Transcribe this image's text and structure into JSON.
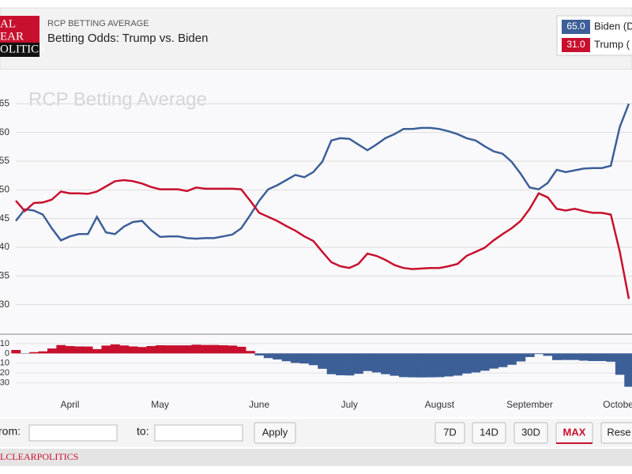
{
  "header": {
    "kicker": "RCP BETTING AVERAGE",
    "title": "Betting Odds: Trump vs. Biden",
    "logo": [
      "AL",
      "EAR",
      "OLITICS"
    ]
  },
  "chart_data": {
    "type": "line",
    "watermark": "RCP Betting Average",
    "categories": [
      null,
      null,
      null,
      null,
      null,
      null,
      "April",
      null,
      null,
      null,
      null,
      null,
      null,
      null,
      null,
      null,
      "May",
      null,
      null,
      null,
      null,
      null,
      null,
      null,
      null,
      null,
      null,
      "June",
      null,
      null,
      null,
      null,
      null,
      null,
      null,
      null,
      null,
      "July",
      null,
      null,
      null,
      null,
      null,
      null,
      null,
      null,
      null,
      "August",
      null,
      null,
      null,
      null,
      null,
      null,
      null,
      null,
      null,
      "September",
      null,
      null,
      null,
      null,
      null,
      null,
      null,
      null,
      null,
      "October",
      null
    ],
    "series": [
      {
        "name": "Biden (D",
        "color": "#3d5f98",
        "value_label": "65.0",
        "values": [
          44.6,
          46.6,
          46.4,
          45.7,
          43.3,
          41.2,
          41.9,
          42.3,
          42.3,
          45.3,
          42.6,
          42.3,
          43.6,
          44.4,
          44.6,
          43.0,
          41.8,
          41.9,
          41.9,
          41.6,
          41.5,
          41.6,
          41.6,
          41.9,
          42.2,
          43.3,
          45.6,
          48.1,
          50.1,
          50.8,
          51.7,
          52.6,
          52.2,
          53.1,
          54.9,
          58.6,
          59.0,
          58.9,
          57.9,
          56.9,
          57.9,
          59.0,
          59.7,
          60.6,
          60.6,
          60.8,
          60.8,
          60.6,
          60.2,
          59.7,
          59.0,
          58.6,
          57.6,
          56.7,
          56.3,
          54.9,
          52.8,
          50.4,
          50.1,
          51.2,
          53.5,
          53.1,
          53.4,
          53.7,
          53.8,
          53.8,
          54.2,
          61.0,
          65.0
        ]
      },
      {
        "name": "Trump (",
        "color": "#c8102e",
        "value_label": "31.0",
        "values": [
          48.1,
          46.3,
          47.7,
          47.8,
          48.3,
          49.7,
          49.4,
          49.4,
          49.3,
          49.7,
          50.6,
          51.5,
          51.7,
          51.5,
          51.1,
          50.5,
          50.1,
          50.1,
          50.1,
          49.8,
          50.4,
          50.2,
          50.2,
          50.2,
          50.2,
          50.1,
          48.1,
          46.0,
          45.3,
          44.6,
          43.7,
          42.9,
          41.9,
          41.1,
          39.2,
          37.4,
          36.7,
          36.4,
          37.1,
          38.9,
          38.5,
          37.8,
          36.9,
          36.4,
          36.2,
          36.3,
          36.4,
          36.4,
          36.7,
          37.1,
          38.5,
          39.2,
          39.9,
          41.2,
          42.3,
          43.3,
          44.6,
          46.7,
          49.4,
          48.7,
          46.7,
          46.4,
          46.7,
          46.3,
          46.0,
          46.0,
          45.7,
          39.2,
          31.0
        ]
      }
    ],
    "ylim": [
      25,
      70
    ],
    "yticks": [
      30,
      35,
      40,
      45,
      50,
      55,
      60,
      65
    ],
    "grid": true,
    "y2lim": [
      -40,
      18
    ],
    "y2ticks": [
      10,
      0,
      -10,
      -20,
      -30
    ]
  },
  "controls": {
    "from": "rom:",
    "to": "to:",
    "apply": "Apply",
    "ranges": [
      "7D",
      "14D",
      "30D",
      "MAX",
      "Rese"
    ]
  },
  "footer": {
    "brand": "LCLEARPOLITICS"
  }
}
